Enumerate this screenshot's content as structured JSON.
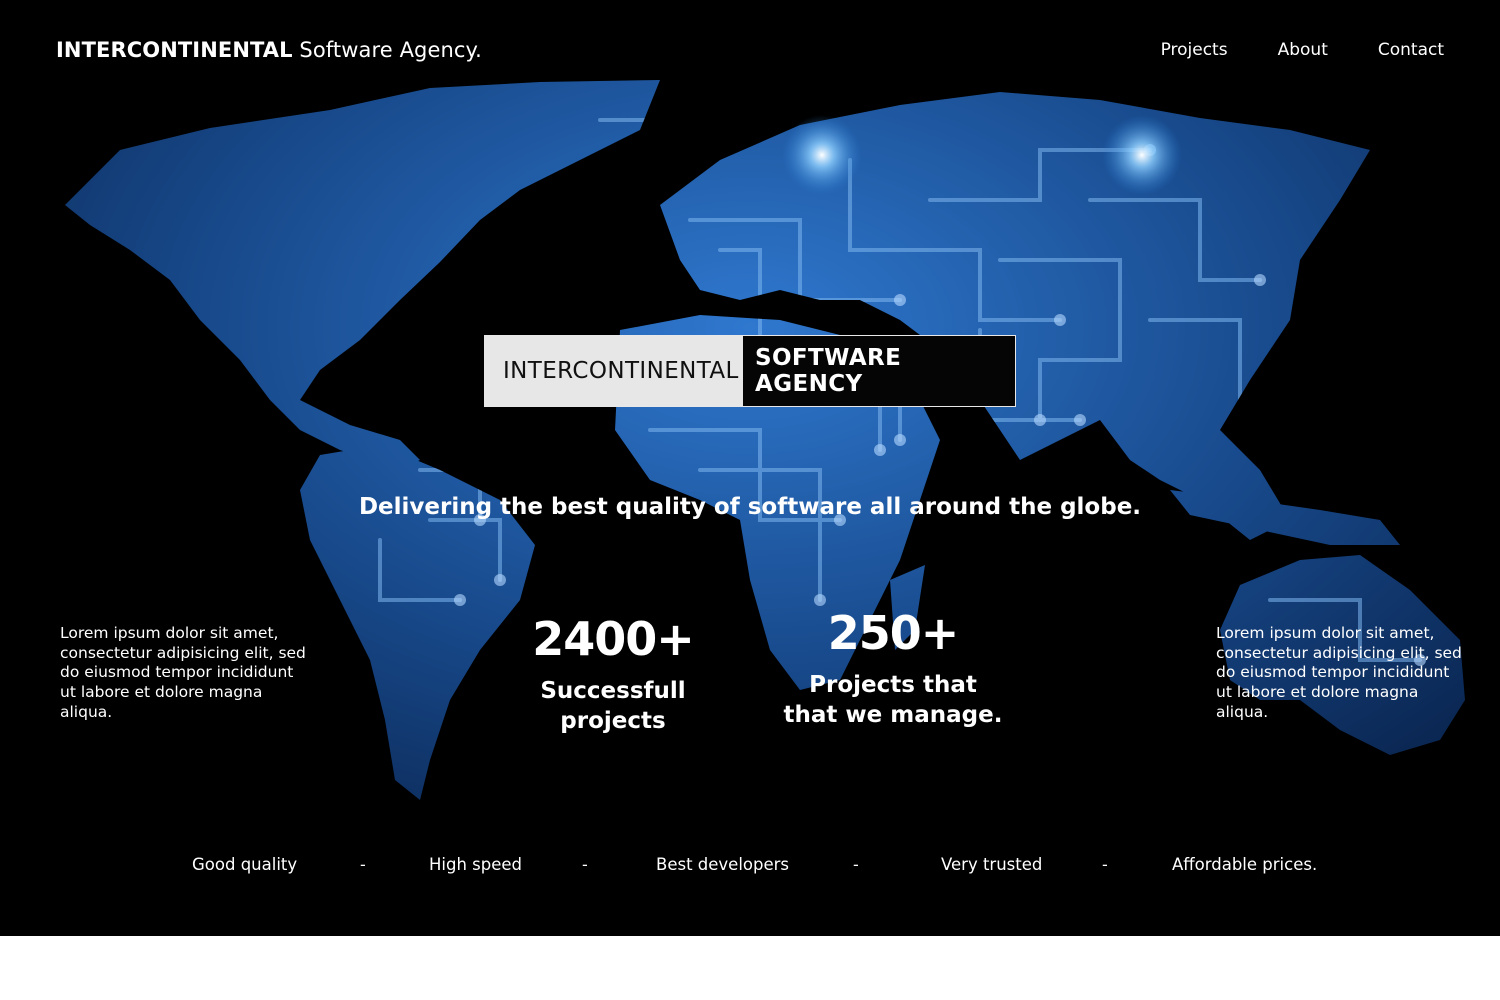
{
  "header": {
    "brand_bold": "INTERCONTINENTAL",
    "brand_rest": " Software Agency.",
    "nav": [
      "Projects",
      "About",
      "Contact"
    ]
  },
  "hero": {
    "title_left": "INTERCONTINENTAL",
    "title_right": "SOFTWARE AGENCY",
    "tagline": "Delivering the best quality of software all around the globe.",
    "background_icon": "world-circuit-map",
    "accent_color": "#1f63b8"
  },
  "intro": {
    "left": "Lorem ipsum dolor sit amet, consectetur adipisicing elit, sed do eiusmod tempor incididunt ut labore et dolore magna aliqua.",
    "right": "Lorem ipsum dolor sit amet, consectetur adipisicing elit, sed do eiusmod tempor incididunt ut labore et dolore magna aliqua."
  },
  "stats": [
    {
      "number": "2400+",
      "label": "Successfull\nprojects"
    },
    {
      "number": "250+",
      "label": "Projects that\nthat we manage."
    }
  ],
  "features": {
    "items": [
      "Good quality",
      "High speed",
      "Best developers",
      "Very trusted",
      "Affordable prices."
    ],
    "separator": "-"
  }
}
